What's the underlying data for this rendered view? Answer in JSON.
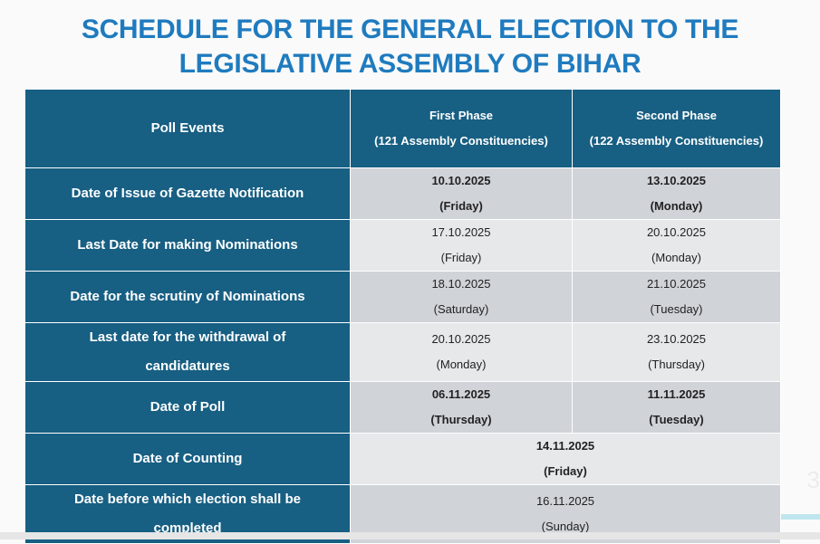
{
  "title_line1": "SCHEDULE FOR THE GENERAL ELECTION TO THE",
  "title_line2": "LEGISLATIVE ASSEMBLY OF BIHAR",
  "header": {
    "events": "Poll Events",
    "p1": "First Phase",
    "p1sub": "(121 Assembly Constituencies)",
    "p2": "Second Phase",
    "p2sub": "(122 Assembly Constituencies)"
  },
  "rows": [
    {
      "event": "Date of Issue of Gazette Notification",
      "p1": "10.10.2025",
      "p1d": "(Friday)",
      "p2": "13.10.2025",
      "p2d": "(Monday)"
    },
    {
      "event": "Last Date for making Nominations",
      "p1": "17.10.2025",
      "p1d": "(Friday)",
      "p2": "20.10.2025",
      "p2d": "(Monday)"
    },
    {
      "event": "Date for the scrutiny of Nominations",
      "p1": "18.10.2025",
      "p1d": "(Saturday)",
      "p2": "21.10.2025",
      "p2d": "(Tuesday)"
    },
    {
      "event": "Last date for the withdrawal of candidatures",
      "p1": "20.10.2025",
      "p1d": "(Monday)",
      "p2": "23.10.2025",
      "p2d": "(Thursday)"
    },
    {
      "event": "Date of Poll",
      "p1": "06.11.2025",
      "p1d": "(Thursday)",
      "p2": "11.11.2025",
      "p2d": "(Tuesday)"
    },
    {
      "event": "Date of Counting",
      "both": "14.11.2025",
      "bothd": "(Friday)"
    },
    {
      "event": "Date before which election shall be completed",
      "both": "16.11.2025",
      "bothd": "(Sunday)"
    }
  ],
  "page_number": "3"
}
